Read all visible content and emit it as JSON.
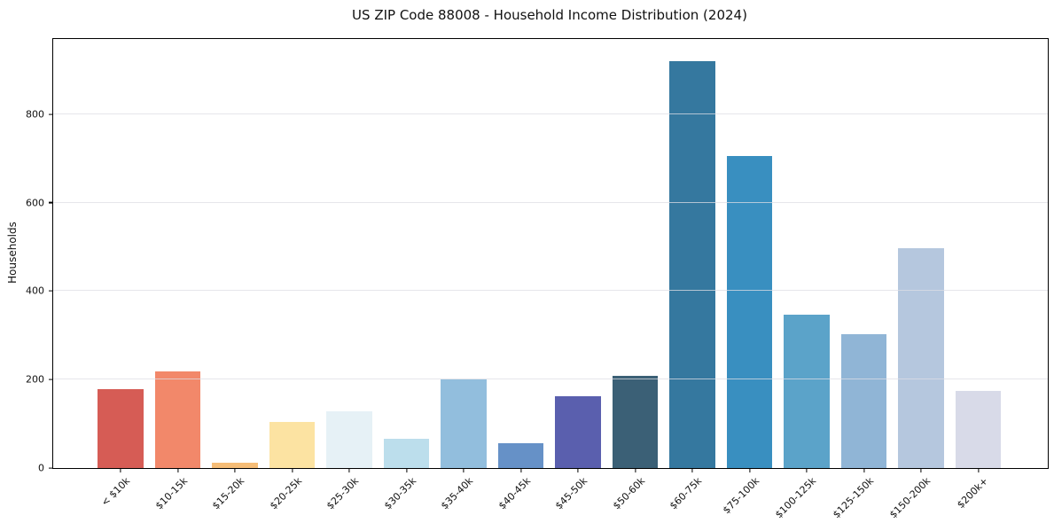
{
  "chart_data": {
    "type": "bar",
    "title": "US ZIP Code 88008 - Household Income Distribution (2024)",
    "xlabel": "",
    "ylabel": "Households",
    "categories": [
      "< $10k",
      "$10-15k",
      "$15-20k",
      "$20-25k",
      "$25-30k",
      "$30-35k",
      "$35-40k",
      "$40-45k",
      "$45-50k",
      "$50-60k",
      "$60-75k",
      "$75-100k",
      "$100-125k",
      "$125-150k",
      "$150-200k",
      "$200k+"
    ],
    "values": [
      178,
      219,
      12,
      104,
      129,
      66,
      201,
      56,
      162,
      209,
      920,
      705,
      346,
      302,
      497,
      174
    ],
    "bar_colors": [
      "#d65c55",
      "#f2886a",
      "#f6bd77",
      "#fce3a2",
      "#e6f1f6",
      "#bcdeec",
      "#92bedd",
      "#6691c7",
      "#5a5fae",
      "#3b6076",
      "#35789f",
      "#398fc0",
      "#5ba3c9",
      "#90b5d6",
      "#b5c7de",
      "#d8dae8"
    ],
    "ylim": [
      0,
      970
    ],
    "yticks": [
      0,
      200,
      400,
      600,
      800
    ],
    "grid": "horizontal",
    "legend": "none"
  }
}
